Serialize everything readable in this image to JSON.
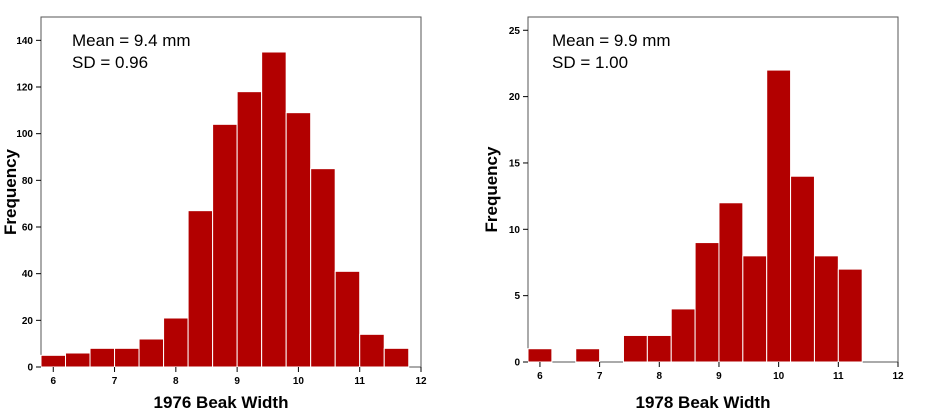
{
  "chart_data": [
    {
      "type": "bar",
      "subtype": "histogram",
      "xlabel": "1976 Beak Width",
      "ylabel": "Frequency",
      "annotations": [
        "Mean = 9.4 mm",
        "SD = 0.96"
      ],
      "xlim": [
        5.8,
        12
      ],
      "ylim": [
        0,
        150
      ],
      "xticks": [
        6,
        7,
        8,
        9,
        10,
        11,
        12
      ],
      "yticks": [
        0,
        20,
        40,
        60,
        80,
        100,
        120,
        140
      ],
      "bin_width": 0.4,
      "bins": [
        {
          "x0": 5.8,
          "x1": 6.2,
          "value": 5
        },
        {
          "x0": 6.2,
          "x1": 6.6,
          "value": 6
        },
        {
          "x0": 6.6,
          "x1": 7.0,
          "value": 8
        },
        {
          "x0": 7.0,
          "x1": 7.4,
          "value": 8
        },
        {
          "x0": 7.4,
          "x1": 7.8,
          "value": 12
        },
        {
          "x0": 7.8,
          "x1": 8.2,
          "value": 21
        },
        {
          "x0": 8.2,
          "x1": 8.6,
          "value": 67
        },
        {
          "x0": 8.6,
          "x1": 9.0,
          "value": 104
        },
        {
          "x0": 9.0,
          "x1": 9.4,
          "value": 118
        },
        {
          "x0": 9.4,
          "x1": 9.8,
          "value": 135
        },
        {
          "x0": 9.8,
          "x1": 10.2,
          "value": 109
        },
        {
          "x0": 10.2,
          "x1": 10.6,
          "value": 85
        },
        {
          "x0": 10.6,
          "x1": 11.0,
          "value": 41
        },
        {
          "x0": 11.0,
          "x1": 11.4,
          "value": 14
        },
        {
          "x0": 11.4,
          "x1": 11.8,
          "value": 8
        }
      ],
      "bar_color": "#b20000",
      "grid": false
    },
    {
      "type": "bar",
      "subtype": "histogram",
      "xlabel": "1978 Beak Width",
      "ylabel": "Frequency",
      "annotations": [
        "Mean = 9.9 mm",
        "SD = 1.00"
      ],
      "xlim": [
        5.8,
        12
      ],
      "ylim": [
        0,
        26
      ],
      "xticks": [
        6,
        7,
        8,
        9,
        10,
        11,
        12
      ],
      "yticks": [
        0,
        5,
        10,
        15,
        20,
        25
      ],
      "bin_width": 0.4,
      "bins": [
        {
          "x0": 5.8,
          "x1": 6.2,
          "value": 1
        },
        {
          "x0": 6.2,
          "x1": 6.6,
          "value": 0
        },
        {
          "x0": 6.6,
          "x1": 7.0,
          "value": 1
        },
        {
          "x0": 7.0,
          "x1": 7.4,
          "value": 0
        },
        {
          "x0": 7.4,
          "x1": 7.8,
          "value": 2
        },
        {
          "x0": 7.8,
          "x1": 8.2,
          "value": 2
        },
        {
          "x0": 8.2,
          "x1": 8.6,
          "value": 4
        },
        {
          "x0": 8.6,
          "x1": 9.0,
          "value": 9
        },
        {
          "x0": 9.0,
          "x1": 9.4,
          "value": 12
        },
        {
          "x0": 9.4,
          "x1": 9.8,
          "value": 8
        },
        {
          "x0": 9.8,
          "x1": 10.2,
          "value": 22
        },
        {
          "x0": 10.2,
          "x1": 10.6,
          "value": 14
        },
        {
          "x0": 10.6,
          "x1": 11.0,
          "value": 8
        },
        {
          "x0": 11.0,
          "x1": 11.4,
          "value": 7
        }
      ],
      "bar_color": "#b20000",
      "grid": false
    }
  ]
}
